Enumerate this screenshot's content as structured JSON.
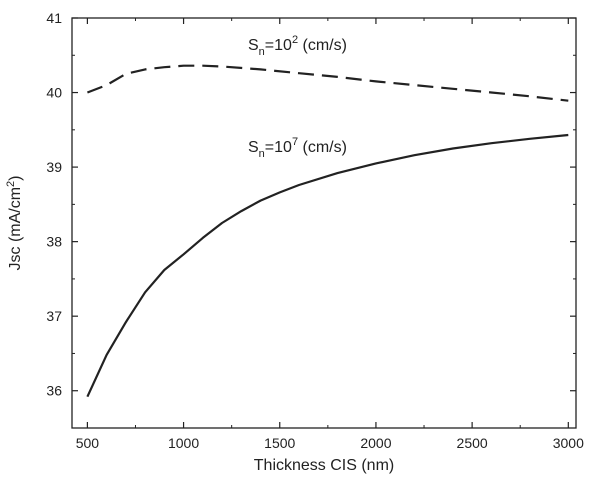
{
  "chart_data": {
    "type": "line",
    "title": "",
    "xlabel": "Thickness CIS (nm)",
    "ylabel": {
      "prefix": "Jsc (mA/cm",
      "sup": "2",
      "suffix": ")"
    },
    "xlim": [
      420,
      3040
    ],
    "ylim": [
      35.5,
      41
    ],
    "xticks": [
      500,
      1000,
      1500,
      2000,
      2500,
      3000
    ],
    "yticks": [
      36,
      37,
      38,
      39,
      40,
      41
    ],
    "grid": false,
    "series": [
      {
        "annotation": {
          "base": "S",
          "sub": "n",
          "mid": "=10",
          "sup": "2",
          "tail": " (cm/s)"
        },
        "style": "dashed",
        "color": "#222222",
        "x": [
          500,
          600,
          700,
          800,
          900,
          1000,
          1100,
          1200,
          1400,
          1600,
          1800,
          2000,
          2200,
          2400,
          2600,
          2800,
          3000
        ],
        "y": [
          40.0,
          40.1,
          40.25,
          40.31,
          40.34,
          40.36,
          40.36,
          40.35,
          40.31,
          40.26,
          40.21,
          40.15,
          40.1,
          40.05,
          40.0,
          39.95,
          39.89
        ]
      },
      {
        "annotation": {
          "base": "S",
          "sub": "n",
          "mid": "=10",
          "sup": "7",
          "tail": " (cm/s)"
        },
        "style": "solid",
        "color": "#222222",
        "x": [
          500,
          600,
          700,
          800,
          900,
          1000,
          1100,
          1200,
          1300,
          1400,
          1500,
          1600,
          1800,
          2000,
          2200,
          2400,
          2600,
          2800,
          3000
        ],
        "y": [
          35.92,
          36.48,
          36.92,
          37.32,
          37.62,
          37.83,
          38.05,
          38.25,
          38.41,
          38.55,
          38.66,
          38.76,
          38.92,
          39.05,
          39.16,
          39.25,
          39.32,
          39.38,
          39.43
        ]
      }
    ]
  }
}
